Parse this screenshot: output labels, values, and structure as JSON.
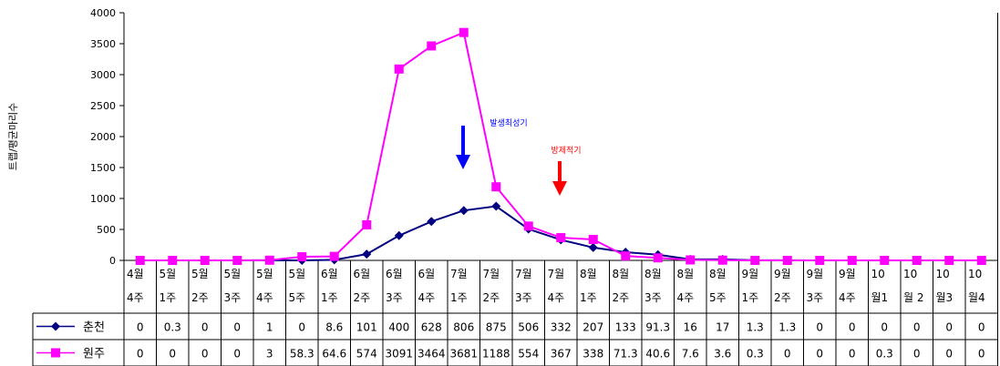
{
  "chart_data": {
    "type": "line",
    "title": "",
    "xlabel": "",
    "ylabel": "트랩/평균마리수",
    "ylim": [
      0,
      4000
    ],
    "yticks": [
      0,
      500,
      1000,
      1500,
      2000,
      2500,
      3000,
      3500,
      4000
    ],
    "grid": false,
    "legend": "left of data table",
    "categories": [
      [
        "4월",
        "4주"
      ],
      [
        "5월",
        "1주"
      ],
      [
        "5월",
        "2주"
      ],
      [
        "5월",
        "3주"
      ],
      [
        "5월",
        "4주"
      ],
      [
        "5월",
        "5주"
      ],
      [
        "6월",
        "1주"
      ],
      [
        "6월",
        "2주"
      ],
      [
        "6월",
        "3주"
      ],
      [
        "6월",
        "4주"
      ],
      [
        "7월",
        "1주"
      ],
      [
        "7월",
        "2주"
      ],
      [
        "7월",
        "3주"
      ],
      [
        "7월",
        "4주"
      ],
      [
        "8월",
        "1주"
      ],
      [
        "8월",
        "2주"
      ],
      [
        "8월",
        "3주"
      ],
      [
        "8월",
        "4주"
      ],
      [
        "8월",
        "5주"
      ],
      [
        "9월",
        "1주"
      ],
      [
        "9월",
        "2주"
      ],
      [
        "9월",
        "3주"
      ],
      [
        "9월",
        "4주"
      ],
      [
        "10",
        "월1"
      ],
      [
        "10",
        "월 2"
      ],
      [
        "10",
        "월3"
      ],
      [
        "10",
        "월4"
      ]
    ],
    "series": [
      {
        "name": "춘천",
        "color": "#000080",
        "marker": "diamond",
        "labels": [
          "0",
          "0.3",
          "0",
          "0",
          "1",
          "0",
          "8.6",
          "101",
          "400",
          "628",
          "806",
          "875",
          "506",
          "332",
          "207",
          "133",
          "91.3",
          "16",
          "17",
          "1.3",
          "1.3",
          "0",
          "0",
          "0",
          "0",
          "0",
          "0"
        ],
        "values": [
          0,
          0.3,
          0,
          0,
          1,
          0,
          8.6,
          101,
          400,
          628,
          806,
          875,
          506,
          332,
          207,
          133,
          91.3,
          16,
          17,
          1.3,
          1.3,
          0,
          0,
          0,
          0,
          0,
          0
        ]
      },
      {
        "name": "원주",
        "color": "#ff00ff",
        "marker": "square",
        "labels": [
          "0",
          "0",
          "0",
          "0",
          "3",
          "58.3",
          "64.6",
          "574",
          "3091",
          "3464",
          "3681",
          "1188",
          "554",
          "367",
          "338",
          "71.3",
          "40.6",
          "7.6",
          "3.6",
          "0.3",
          "0",
          "0",
          "0",
          "0.3",
          "0",
          "0",
          "0"
        ],
        "values": [
          0,
          0,
          0,
          0,
          3,
          58.3,
          64.6,
          574,
          3091,
          3464,
          3681,
          1188,
          554,
          367,
          338,
          71.3,
          40.6,
          7.6,
          3.6,
          0.3,
          0,
          0,
          0,
          0.3,
          0,
          0,
          0
        ]
      }
    ],
    "annotations": [
      {
        "text": "발생최성기",
        "color": "#0000ff",
        "arrow_color": "#0000ff"
      },
      {
        "text": "방제적기",
        "color": "#ff0000",
        "arrow_color": "#ff0000"
      }
    ]
  }
}
